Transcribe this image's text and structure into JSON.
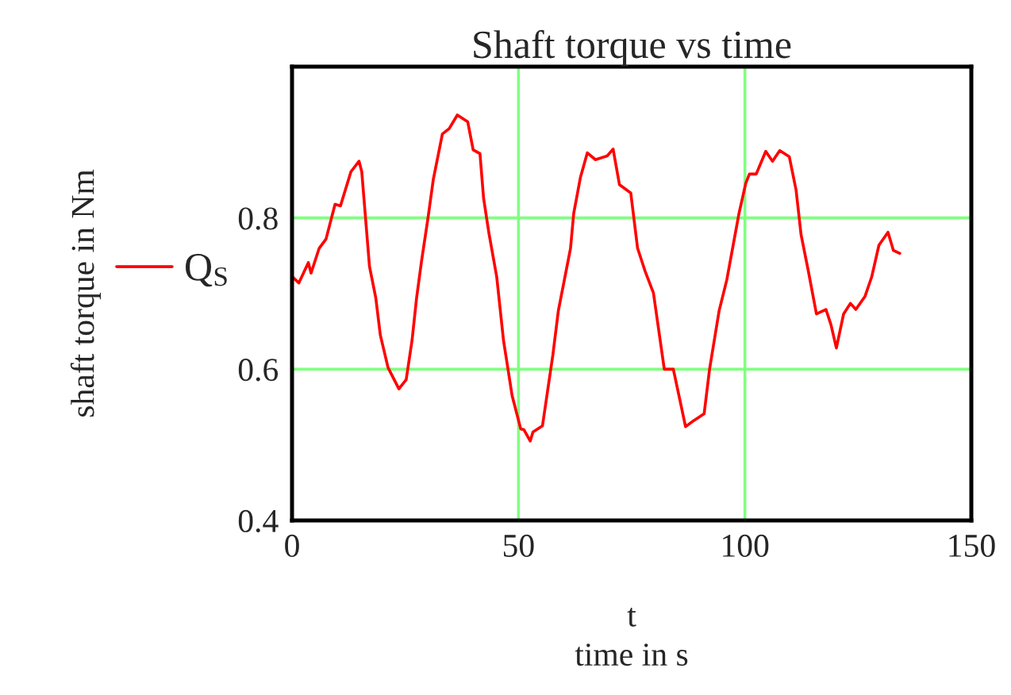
{
  "chart_data": {
    "type": "line",
    "title": "Shaft torque vs time",
    "xlabel": "t\ntime in s",
    "ylabel": "shaft torque in Nm",
    "xlim": [
      0,
      150
    ],
    "xticks": [
      0,
      50,
      100,
      150
    ],
    "ylim": [
      0.4,
      1.0
    ],
    "yticks": [
      0.4,
      0.6,
      0.8
    ],
    "grid": true,
    "legend": "left",
    "series": [
      {
        "name": "Q$_{S}$",
        "color": "#ff0000",
        "x": [
          0.1,
          1.5,
          3.6,
          4.2,
          6.0,
          7.5,
          9.5,
          10.7,
          13.0,
          14.8,
          15.4,
          17.1,
          18.5,
          19.5,
          21.2,
          23.6,
          25.2,
          26.5,
          27.5,
          28.6,
          30.0,
          31.2,
          33.2,
          34.7,
          36.5,
          38.8,
          40.0,
          41.5,
          42.3,
          43.5,
          45.2,
          46.7,
          48.6,
          50.5,
          51.2,
          52.6,
          53.2,
          55.3,
          57.6,
          58.8,
          61.5,
          62.2,
          63.7,
          65.2,
          67.0,
          69.6,
          70.9,
          72.3,
          74.8,
          76.3,
          78.0,
          79.8,
          82.2,
          84.2,
          86.9,
          88.7,
          91.0,
          92.2,
          94.3,
          96.0,
          98.7,
          100.2,
          101.0,
          102.5,
          104.6,
          106.1,
          107.7,
          109.8,
          111.3,
          112.4,
          114.0,
          115.8,
          117.9,
          119.0,
          120.2,
          121.8,
          123.3,
          124.5,
          126.5,
          128.0,
          129.6,
          131.6,
          132.8,
          134.2
        ],
        "values": [
          0.722,
          0.714,
          0.741,
          0.727,
          0.76,
          0.772,
          0.818,
          0.816,
          0.861,
          0.875,
          0.861,
          0.736,
          0.694,
          0.645,
          0.602,
          0.574,
          0.586,
          0.638,
          0.694,
          0.743,
          0.799,
          0.851,
          0.911,
          0.918,
          0.936,
          0.927,
          0.89,
          0.885,
          0.826,
          0.779,
          0.722,
          0.638,
          0.565,
          0.521,
          0.52,
          0.505,
          0.517,
          0.525,
          0.619,
          0.677,
          0.76,
          0.806,
          0.854,
          0.886,
          0.877,
          0.882,
          0.891,
          0.844,
          0.833,
          0.76,
          0.729,
          0.701,
          0.6,
          0.6,
          0.524,
          0.532,
          0.541,
          0.6,
          0.677,
          0.718,
          0.806,
          0.846,
          0.858,
          0.858,
          0.888,
          0.875,
          0.889,
          0.881,
          0.837,
          0.778,
          0.73,
          0.673,
          0.679,
          0.659,
          0.628,
          0.673,
          0.687,
          0.679,
          0.696,
          0.722,
          0.764,
          0.781,
          0.757,
          0.753
        ]
      }
    ]
  }
}
